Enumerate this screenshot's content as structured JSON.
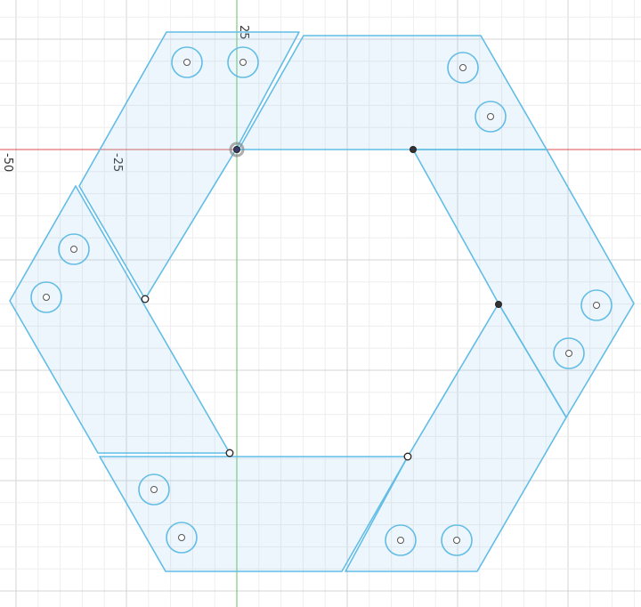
{
  "rulers": {
    "top_label": "25",
    "left_labels": [
      "-50",
      "-25"
    ]
  },
  "colors": {
    "profile_stroke": "#62bde6",
    "profile_fill": "#8cc8eb",
    "x_axis": "#d9534f",
    "y_axis": "#5cc35c",
    "grid_major": "#d4d4d4",
    "grid_minor": "#eeeeee"
  },
  "icons": [
    "origin-point-icon",
    "sketch-point-icon",
    "hole-icon"
  ],
  "parts": [
    {
      "name": "upper-left-segment",
      "holes": 2
    },
    {
      "name": "top-segment",
      "holes": 2
    },
    {
      "name": "right-segment",
      "holes": 2
    },
    {
      "name": "lower-right-segment",
      "holes": 2
    },
    {
      "name": "bottom-segment",
      "holes": 2
    },
    {
      "name": "left-segment",
      "holes": 2
    }
  ]
}
